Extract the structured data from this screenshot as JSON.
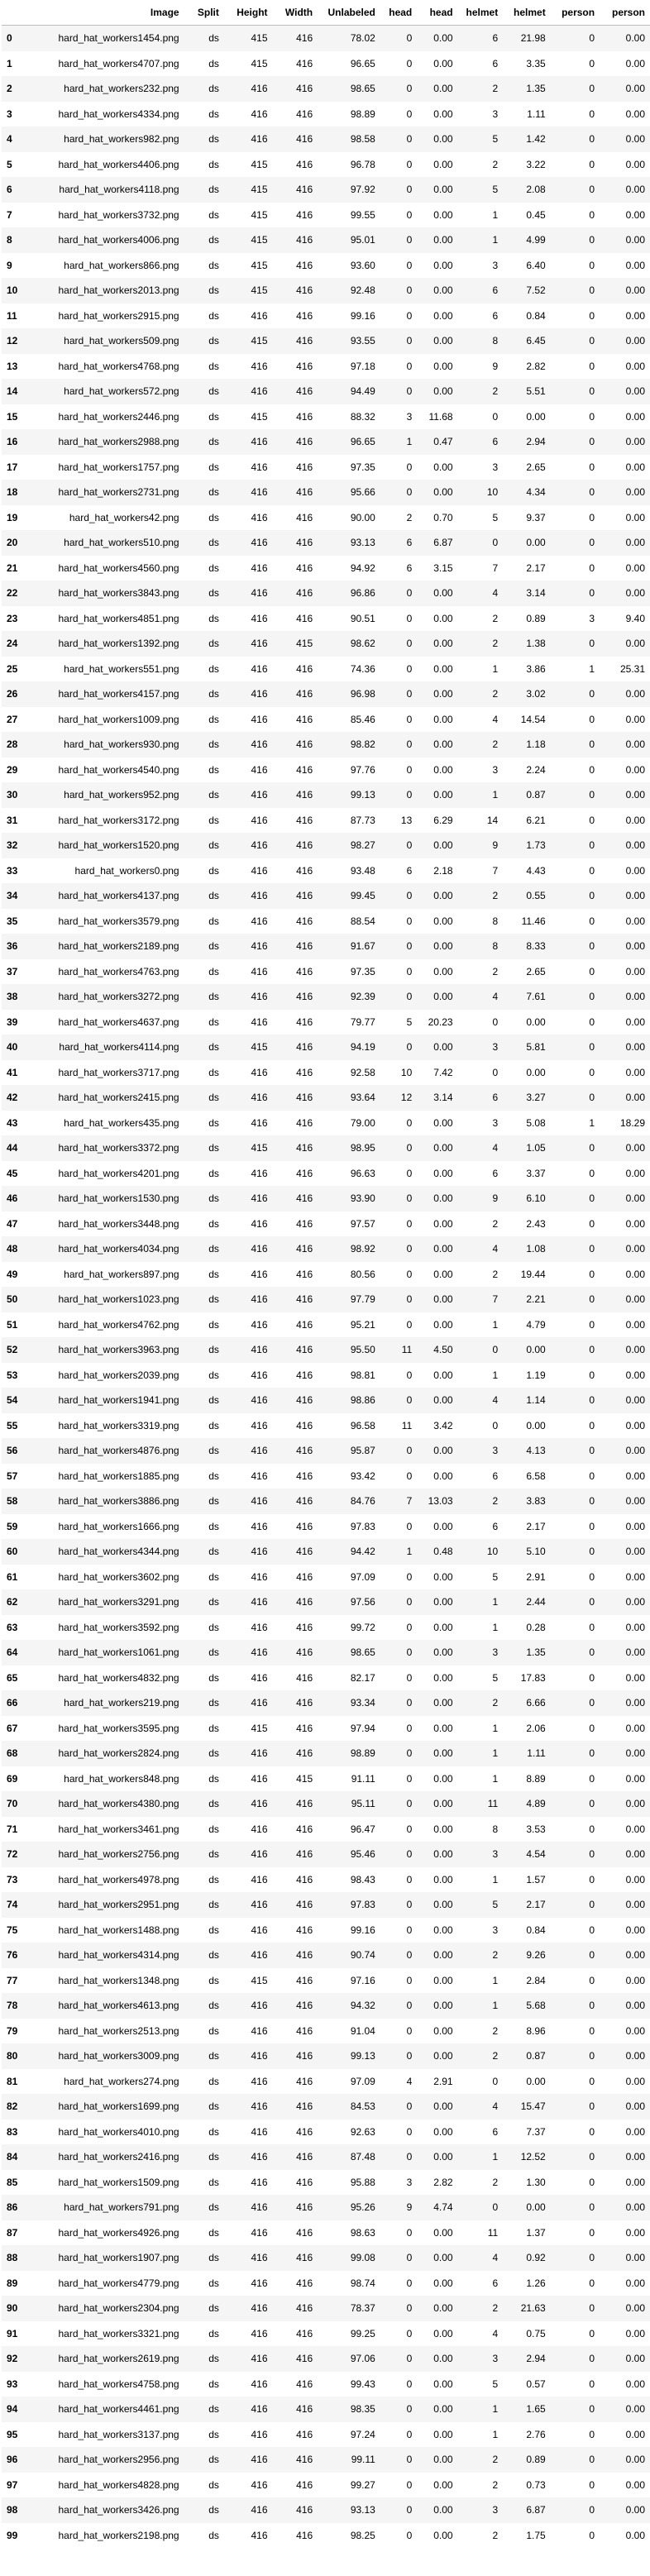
{
  "columns": [
    "",
    "Image",
    "Split",
    "Height",
    "Width",
    "Unlabeled",
    "head",
    "head",
    "helmet",
    "helmet",
    "person",
    "person"
  ],
  "rows": [
    [
      "0",
      "hard_hat_workers1454.png",
      "ds",
      "415",
      "416",
      "78.02",
      "0",
      "0.00",
      "6",
      "21.98",
      "0",
      "0.00"
    ],
    [
      "1",
      "hard_hat_workers4707.png",
      "ds",
      "415",
      "416",
      "96.65",
      "0",
      "0.00",
      "6",
      "3.35",
      "0",
      "0.00"
    ],
    [
      "2",
      "hard_hat_workers232.png",
      "ds",
      "416",
      "416",
      "98.65",
      "0",
      "0.00",
      "2",
      "1.35",
      "0",
      "0.00"
    ],
    [
      "3",
      "hard_hat_workers4334.png",
      "ds",
      "416",
      "416",
      "98.89",
      "0",
      "0.00",
      "3",
      "1.11",
      "0",
      "0.00"
    ],
    [
      "4",
      "hard_hat_workers982.png",
      "ds",
      "416",
      "416",
      "98.58",
      "0",
      "0.00",
      "5",
      "1.42",
      "0",
      "0.00"
    ],
    [
      "5",
      "hard_hat_workers4406.png",
      "ds",
      "415",
      "416",
      "96.78",
      "0",
      "0.00",
      "2",
      "3.22",
      "0",
      "0.00"
    ],
    [
      "6",
      "hard_hat_workers4118.png",
      "ds",
      "415",
      "416",
      "97.92",
      "0",
      "0.00",
      "5",
      "2.08",
      "0",
      "0.00"
    ],
    [
      "7",
      "hard_hat_workers3732.png",
      "ds",
      "415",
      "416",
      "99.55",
      "0",
      "0.00",
      "1",
      "0.45",
      "0",
      "0.00"
    ],
    [
      "8",
      "hard_hat_workers4006.png",
      "ds",
      "415",
      "416",
      "95.01",
      "0",
      "0.00",
      "1",
      "4.99",
      "0",
      "0.00"
    ],
    [
      "9",
      "hard_hat_workers866.png",
      "ds",
      "415",
      "416",
      "93.60",
      "0",
      "0.00",
      "3",
      "6.40",
      "0",
      "0.00"
    ],
    [
      "10",
      "hard_hat_workers2013.png",
      "ds",
      "415",
      "416",
      "92.48",
      "0",
      "0.00",
      "6",
      "7.52",
      "0",
      "0.00"
    ],
    [
      "11",
      "hard_hat_workers2915.png",
      "ds",
      "416",
      "416",
      "99.16",
      "0",
      "0.00",
      "6",
      "0.84",
      "0",
      "0.00"
    ],
    [
      "12",
      "hard_hat_workers509.png",
      "ds",
      "415",
      "416",
      "93.55",
      "0",
      "0.00",
      "8",
      "6.45",
      "0",
      "0.00"
    ],
    [
      "13",
      "hard_hat_workers4768.png",
      "ds",
      "416",
      "416",
      "97.18",
      "0",
      "0.00",
      "9",
      "2.82",
      "0",
      "0.00"
    ],
    [
      "14",
      "hard_hat_workers572.png",
      "ds",
      "416",
      "416",
      "94.49",
      "0",
      "0.00",
      "2",
      "5.51",
      "0",
      "0.00"
    ],
    [
      "15",
      "hard_hat_workers2446.png",
      "ds",
      "415",
      "416",
      "88.32",
      "3",
      "11.68",
      "0",
      "0.00",
      "0",
      "0.00"
    ],
    [
      "16",
      "hard_hat_workers2988.png",
      "ds",
      "416",
      "416",
      "96.65",
      "1",
      "0.47",
      "6",
      "2.94",
      "0",
      "0.00"
    ],
    [
      "17",
      "hard_hat_workers1757.png",
      "ds",
      "416",
      "416",
      "97.35",
      "0",
      "0.00",
      "3",
      "2.65",
      "0",
      "0.00"
    ],
    [
      "18",
      "hard_hat_workers2731.png",
      "ds",
      "416",
      "416",
      "95.66",
      "0",
      "0.00",
      "10",
      "4.34",
      "0",
      "0.00"
    ],
    [
      "19",
      "hard_hat_workers42.png",
      "ds",
      "416",
      "416",
      "90.00",
      "2",
      "0.70",
      "5",
      "9.37",
      "0",
      "0.00"
    ],
    [
      "20",
      "hard_hat_workers510.png",
      "ds",
      "416",
      "416",
      "93.13",
      "6",
      "6.87",
      "0",
      "0.00",
      "0",
      "0.00"
    ],
    [
      "21",
      "hard_hat_workers4560.png",
      "ds",
      "416",
      "416",
      "94.92",
      "6",
      "3.15",
      "7",
      "2.17",
      "0",
      "0.00"
    ],
    [
      "22",
      "hard_hat_workers3843.png",
      "ds",
      "416",
      "416",
      "96.86",
      "0",
      "0.00",
      "4",
      "3.14",
      "0",
      "0.00"
    ],
    [
      "23",
      "hard_hat_workers4851.png",
      "ds",
      "416",
      "416",
      "90.51",
      "0",
      "0.00",
      "2",
      "0.89",
      "3",
      "9.40"
    ],
    [
      "24",
      "hard_hat_workers1392.png",
      "ds",
      "416",
      "415",
      "98.62",
      "0",
      "0.00",
      "2",
      "1.38",
      "0",
      "0.00"
    ],
    [
      "25",
      "hard_hat_workers551.png",
      "ds",
      "416",
      "416",
      "74.36",
      "0",
      "0.00",
      "1",
      "3.86",
      "1",
      "25.31"
    ],
    [
      "26",
      "hard_hat_workers4157.png",
      "ds",
      "416",
      "416",
      "96.98",
      "0",
      "0.00",
      "2",
      "3.02",
      "0",
      "0.00"
    ],
    [
      "27",
      "hard_hat_workers1009.png",
      "ds",
      "416",
      "416",
      "85.46",
      "0",
      "0.00",
      "4",
      "14.54",
      "0",
      "0.00"
    ],
    [
      "28",
      "hard_hat_workers930.png",
      "ds",
      "416",
      "416",
      "98.82",
      "0",
      "0.00",
      "2",
      "1.18",
      "0",
      "0.00"
    ],
    [
      "29",
      "hard_hat_workers4540.png",
      "ds",
      "416",
      "416",
      "97.76",
      "0",
      "0.00",
      "3",
      "2.24",
      "0",
      "0.00"
    ],
    [
      "30",
      "hard_hat_workers952.png",
      "ds",
      "416",
      "416",
      "99.13",
      "0",
      "0.00",
      "1",
      "0.87",
      "0",
      "0.00"
    ],
    [
      "31",
      "hard_hat_workers3172.png",
      "ds",
      "416",
      "416",
      "87.73",
      "13",
      "6.29",
      "14",
      "6.21",
      "0",
      "0.00"
    ],
    [
      "32",
      "hard_hat_workers1520.png",
      "ds",
      "416",
      "416",
      "98.27",
      "0",
      "0.00",
      "9",
      "1.73",
      "0",
      "0.00"
    ],
    [
      "33",
      "hard_hat_workers0.png",
      "ds",
      "416",
      "416",
      "93.48",
      "6",
      "2.18",
      "7",
      "4.43",
      "0",
      "0.00"
    ],
    [
      "34",
      "hard_hat_workers4137.png",
      "ds",
      "416",
      "416",
      "99.45",
      "0",
      "0.00",
      "2",
      "0.55",
      "0",
      "0.00"
    ],
    [
      "35",
      "hard_hat_workers3579.png",
      "ds",
      "416",
      "416",
      "88.54",
      "0",
      "0.00",
      "8",
      "11.46",
      "0",
      "0.00"
    ],
    [
      "36",
      "hard_hat_workers2189.png",
      "ds",
      "416",
      "416",
      "91.67",
      "0",
      "0.00",
      "8",
      "8.33",
      "0",
      "0.00"
    ],
    [
      "37",
      "hard_hat_workers4763.png",
      "ds",
      "416",
      "416",
      "97.35",
      "0",
      "0.00",
      "2",
      "2.65",
      "0",
      "0.00"
    ],
    [
      "38",
      "hard_hat_workers3272.png",
      "ds",
      "416",
      "416",
      "92.39",
      "0",
      "0.00",
      "4",
      "7.61",
      "0",
      "0.00"
    ],
    [
      "39",
      "hard_hat_workers4637.png",
      "ds",
      "416",
      "416",
      "79.77",
      "5",
      "20.23",
      "0",
      "0.00",
      "0",
      "0.00"
    ],
    [
      "40",
      "hard_hat_workers4114.png",
      "ds",
      "415",
      "416",
      "94.19",
      "0",
      "0.00",
      "3",
      "5.81",
      "0",
      "0.00"
    ],
    [
      "41",
      "hard_hat_workers3717.png",
      "ds",
      "416",
      "416",
      "92.58",
      "10",
      "7.42",
      "0",
      "0.00",
      "0",
      "0.00"
    ],
    [
      "42",
      "hard_hat_workers2415.png",
      "ds",
      "416",
      "416",
      "93.64",
      "12",
      "3.14",
      "6",
      "3.27",
      "0",
      "0.00"
    ],
    [
      "43",
      "hard_hat_workers435.png",
      "ds",
      "416",
      "416",
      "79.00",
      "0",
      "0.00",
      "3",
      "5.08",
      "1",
      "18.29"
    ],
    [
      "44",
      "hard_hat_workers3372.png",
      "ds",
      "415",
      "416",
      "98.95",
      "0",
      "0.00",
      "4",
      "1.05",
      "0",
      "0.00"
    ],
    [
      "45",
      "hard_hat_workers4201.png",
      "ds",
      "416",
      "416",
      "96.63",
      "0",
      "0.00",
      "6",
      "3.37",
      "0",
      "0.00"
    ],
    [
      "46",
      "hard_hat_workers1530.png",
      "ds",
      "416",
      "416",
      "93.90",
      "0",
      "0.00",
      "9",
      "6.10",
      "0",
      "0.00"
    ],
    [
      "47",
      "hard_hat_workers3448.png",
      "ds",
      "416",
      "416",
      "97.57",
      "0",
      "0.00",
      "2",
      "2.43",
      "0",
      "0.00"
    ],
    [
      "48",
      "hard_hat_workers4034.png",
      "ds",
      "416",
      "416",
      "98.92",
      "0",
      "0.00",
      "4",
      "1.08",
      "0",
      "0.00"
    ],
    [
      "49",
      "hard_hat_workers897.png",
      "ds",
      "416",
      "416",
      "80.56",
      "0",
      "0.00",
      "2",
      "19.44",
      "0",
      "0.00"
    ],
    [
      "50",
      "hard_hat_workers1023.png",
      "ds",
      "416",
      "416",
      "97.79",
      "0",
      "0.00",
      "7",
      "2.21",
      "0",
      "0.00"
    ],
    [
      "51",
      "hard_hat_workers4762.png",
      "ds",
      "416",
      "416",
      "95.21",
      "0",
      "0.00",
      "1",
      "4.79",
      "0",
      "0.00"
    ],
    [
      "52",
      "hard_hat_workers3963.png",
      "ds",
      "416",
      "416",
      "95.50",
      "11",
      "4.50",
      "0",
      "0.00",
      "0",
      "0.00"
    ],
    [
      "53",
      "hard_hat_workers2039.png",
      "ds",
      "416",
      "416",
      "98.81",
      "0",
      "0.00",
      "1",
      "1.19",
      "0",
      "0.00"
    ],
    [
      "54",
      "hard_hat_workers1941.png",
      "ds",
      "416",
      "416",
      "98.86",
      "0",
      "0.00",
      "4",
      "1.14",
      "0",
      "0.00"
    ],
    [
      "55",
      "hard_hat_workers3319.png",
      "ds",
      "416",
      "416",
      "96.58",
      "11",
      "3.42",
      "0",
      "0.00",
      "0",
      "0.00"
    ],
    [
      "56",
      "hard_hat_workers4876.png",
      "ds",
      "416",
      "416",
      "95.87",
      "0",
      "0.00",
      "3",
      "4.13",
      "0",
      "0.00"
    ],
    [
      "57",
      "hard_hat_workers1885.png",
      "ds",
      "416",
      "416",
      "93.42",
      "0",
      "0.00",
      "6",
      "6.58",
      "0",
      "0.00"
    ],
    [
      "58",
      "hard_hat_workers3886.png",
      "ds",
      "416",
      "416",
      "84.76",
      "7",
      "13.03",
      "2",
      "3.83",
      "0",
      "0.00"
    ],
    [
      "59",
      "hard_hat_workers1666.png",
      "ds",
      "416",
      "416",
      "97.83",
      "0",
      "0.00",
      "6",
      "2.17",
      "0",
      "0.00"
    ],
    [
      "60",
      "hard_hat_workers4344.png",
      "ds",
      "416",
      "416",
      "94.42",
      "1",
      "0.48",
      "10",
      "5.10",
      "0",
      "0.00"
    ],
    [
      "61",
      "hard_hat_workers3602.png",
      "ds",
      "416",
      "416",
      "97.09",
      "0",
      "0.00",
      "5",
      "2.91",
      "0",
      "0.00"
    ],
    [
      "62",
      "hard_hat_workers3291.png",
      "ds",
      "416",
      "416",
      "97.56",
      "0",
      "0.00",
      "1",
      "2.44",
      "0",
      "0.00"
    ],
    [
      "63",
      "hard_hat_workers3592.png",
      "ds",
      "416",
      "416",
      "99.72",
      "0",
      "0.00",
      "1",
      "0.28",
      "0",
      "0.00"
    ],
    [
      "64",
      "hard_hat_workers1061.png",
      "ds",
      "416",
      "416",
      "98.65",
      "0",
      "0.00",
      "3",
      "1.35",
      "0",
      "0.00"
    ],
    [
      "65",
      "hard_hat_workers4832.png",
      "ds",
      "416",
      "416",
      "82.17",
      "0",
      "0.00",
      "5",
      "17.83",
      "0",
      "0.00"
    ],
    [
      "66",
      "hard_hat_workers219.png",
      "ds",
      "416",
      "416",
      "93.34",
      "0",
      "0.00",
      "2",
      "6.66",
      "0",
      "0.00"
    ],
    [
      "67",
      "hard_hat_workers3595.png",
      "ds",
      "415",
      "416",
      "97.94",
      "0",
      "0.00",
      "1",
      "2.06",
      "0",
      "0.00"
    ],
    [
      "68",
      "hard_hat_workers2824.png",
      "ds",
      "416",
      "416",
      "98.89",
      "0",
      "0.00",
      "1",
      "1.11",
      "0",
      "0.00"
    ],
    [
      "69",
      "hard_hat_workers848.png",
      "ds",
      "416",
      "415",
      "91.11",
      "0",
      "0.00",
      "1",
      "8.89",
      "0",
      "0.00"
    ],
    [
      "70",
      "hard_hat_workers4380.png",
      "ds",
      "416",
      "416",
      "95.11",
      "0",
      "0.00",
      "11",
      "4.89",
      "0",
      "0.00"
    ],
    [
      "71",
      "hard_hat_workers3461.png",
      "ds",
      "416",
      "416",
      "96.47",
      "0",
      "0.00",
      "8",
      "3.53",
      "0",
      "0.00"
    ],
    [
      "72",
      "hard_hat_workers2756.png",
      "ds",
      "416",
      "416",
      "95.46",
      "0",
      "0.00",
      "3",
      "4.54",
      "0",
      "0.00"
    ],
    [
      "73",
      "hard_hat_workers4978.png",
      "ds",
      "416",
      "416",
      "98.43",
      "0",
      "0.00",
      "1",
      "1.57",
      "0",
      "0.00"
    ],
    [
      "74",
      "hard_hat_workers2951.png",
      "ds",
      "416",
      "416",
      "97.83",
      "0",
      "0.00",
      "5",
      "2.17",
      "0",
      "0.00"
    ],
    [
      "75",
      "hard_hat_workers1488.png",
      "ds",
      "416",
      "416",
      "99.16",
      "0",
      "0.00",
      "3",
      "0.84",
      "0",
      "0.00"
    ],
    [
      "76",
      "hard_hat_workers4314.png",
      "ds",
      "416",
      "416",
      "90.74",
      "0",
      "0.00",
      "2",
      "9.26",
      "0",
      "0.00"
    ],
    [
      "77",
      "hard_hat_workers1348.png",
      "ds",
      "415",
      "416",
      "97.16",
      "0",
      "0.00",
      "1",
      "2.84",
      "0",
      "0.00"
    ],
    [
      "78",
      "hard_hat_workers4613.png",
      "ds",
      "416",
      "416",
      "94.32",
      "0",
      "0.00",
      "1",
      "5.68",
      "0",
      "0.00"
    ],
    [
      "79",
      "hard_hat_workers2513.png",
      "ds",
      "416",
      "416",
      "91.04",
      "0",
      "0.00",
      "2",
      "8.96",
      "0",
      "0.00"
    ],
    [
      "80",
      "hard_hat_workers3009.png",
      "ds",
      "416",
      "416",
      "99.13",
      "0",
      "0.00",
      "2",
      "0.87",
      "0",
      "0.00"
    ],
    [
      "81",
      "hard_hat_workers274.png",
      "ds",
      "416",
      "416",
      "97.09",
      "4",
      "2.91",
      "0",
      "0.00",
      "0",
      "0.00"
    ],
    [
      "82",
      "hard_hat_workers1699.png",
      "ds",
      "416",
      "416",
      "84.53",
      "0",
      "0.00",
      "4",
      "15.47",
      "0",
      "0.00"
    ],
    [
      "83",
      "hard_hat_workers4010.png",
      "ds",
      "416",
      "416",
      "92.63",
      "0",
      "0.00",
      "6",
      "7.37",
      "0",
      "0.00"
    ],
    [
      "84",
      "hard_hat_workers2416.png",
      "ds",
      "416",
      "416",
      "87.48",
      "0",
      "0.00",
      "1",
      "12.52",
      "0",
      "0.00"
    ],
    [
      "85",
      "hard_hat_workers1509.png",
      "ds",
      "416",
      "416",
      "95.88",
      "3",
      "2.82",
      "2",
      "1.30",
      "0",
      "0.00"
    ],
    [
      "86",
      "hard_hat_workers791.png",
      "ds",
      "416",
      "416",
      "95.26",
      "9",
      "4.74",
      "0",
      "0.00",
      "0",
      "0.00"
    ],
    [
      "87",
      "hard_hat_workers4926.png",
      "ds",
      "416",
      "416",
      "98.63",
      "0",
      "0.00",
      "11",
      "1.37",
      "0",
      "0.00"
    ],
    [
      "88",
      "hard_hat_workers1907.png",
      "ds",
      "416",
      "416",
      "99.08",
      "0",
      "0.00",
      "4",
      "0.92",
      "0",
      "0.00"
    ],
    [
      "89",
      "hard_hat_workers4779.png",
      "ds",
      "416",
      "416",
      "98.74",
      "0",
      "0.00",
      "6",
      "1.26",
      "0",
      "0.00"
    ],
    [
      "90",
      "hard_hat_workers2304.png",
      "ds",
      "416",
      "416",
      "78.37",
      "0",
      "0.00",
      "2",
      "21.63",
      "0",
      "0.00"
    ],
    [
      "91",
      "hard_hat_workers3321.png",
      "ds",
      "416",
      "416",
      "99.25",
      "0",
      "0.00",
      "4",
      "0.75",
      "0",
      "0.00"
    ],
    [
      "92",
      "hard_hat_workers2619.png",
      "ds",
      "416",
      "416",
      "97.06",
      "0",
      "0.00",
      "3",
      "2.94",
      "0",
      "0.00"
    ],
    [
      "93",
      "hard_hat_workers4758.png",
      "ds",
      "416",
      "416",
      "99.43",
      "0",
      "0.00",
      "5",
      "0.57",
      "0",
      "0.00"
    ],
    [
      "94",
      "hard_hat_workers4461.png",
      "ds",
      "416",
      "416",
      "98.35",
      "0",
      "0.00",
      "1",
      "1.65",
      "0",
      "0.00"
    ],
    [
      "95",
      "hard_hat_workers3137.png",
      "ds",
      "416",
      "416",
      "97.24",
      "0",
      "0.00",
      "1",
      "2.76",
      "0",
      "0.00"
    ],
    [
      "96",
      "hard_hat_workers2956.png",
      "ds",
      "416",
      "416",
      "99.11",
      "0",
      "0.00",
      "2",
      "0.89",
      "0",
      "0.00"
    ],
    [
      "97",
      "hard_hat_workers4828.png",
      "ds",
      "416",
      "416",
      "99.27",
      "0",
      "0.00",
      "2",
      "0.73",
      "0",
      "0.00"
    ],
    [
      "98",
      "hard_hat_workers3426.png",
      "ds",
      "416",
      "416",
      "93.13",
      "0",
      "0.00",
      "3",
      "6.87",
      "0",
      "0.00"
    ],
    [
      "99",
      "hard_hat_workers2198.png",
      "ds",
      "416",
      "416",
      "98.25",
      "0",
      "0.00",
      "2",
      "1.75",
      "0",
      "0.00"
    ]
  ]
}
